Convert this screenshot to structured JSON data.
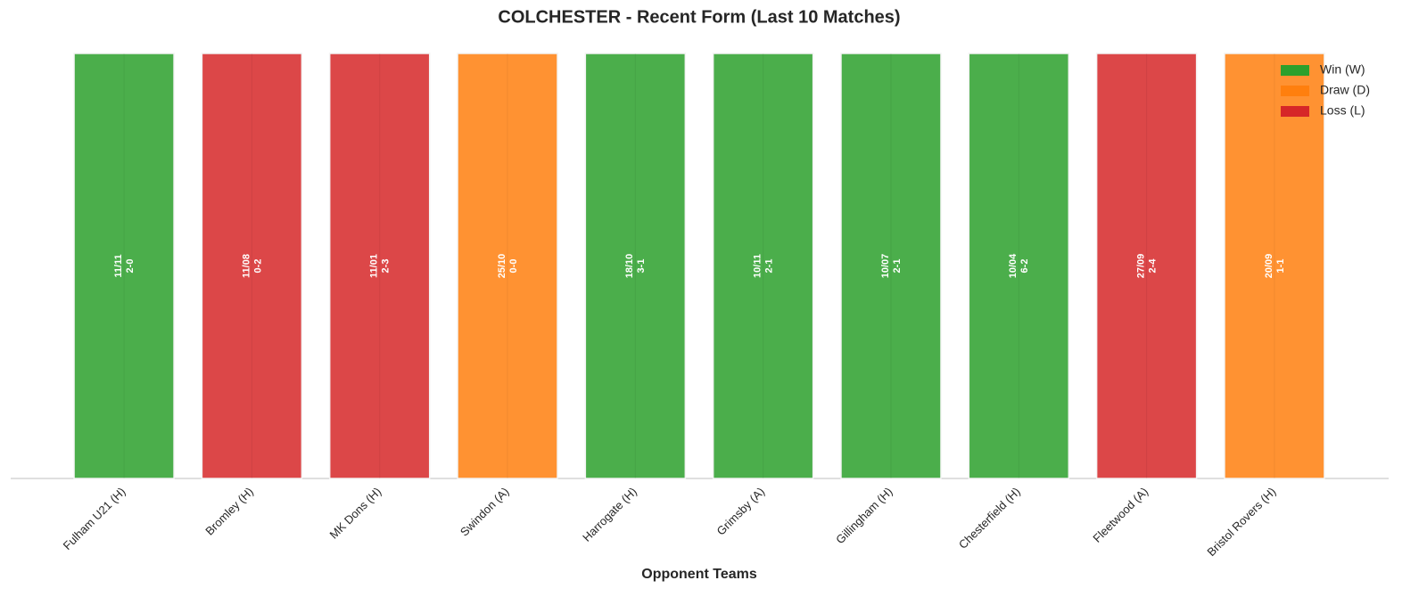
{
  "chart_data": {
    "type": "bar",
    "title": "COLCHESTER - Recent Form (Last 10 Matches)",
    "xlabel": "Opponent Teams",
    "categories": [
      "Fulham U21 (H)",
      "Bromley (H)",
      "MK Dons (H)",
      "Swindon (A)",
      "Harrogate (H)",
      "Grimsby (A)",
      "Gillingham (H)",
      "Chesterfield (H)",
      "Fleetwood (A)",
      "Bristol Rovers (H)"
    ],
    "values": [
      1,
      1,
      1,
      1,
      1,
      1,
      1,
      1,
      1,
      1
    ],
    "dates": [
      "11/11",
      "11/08",
      "11/01",
      "25/10",
      "18/10",
      "10/11",
      "10/07",
      "10/04",
      "27/09",
      "20/09"
    ],
    "scores": [
      "2-0",
      "0-2",
      "2-3",
      "0-0",
      "3-1",
      "2-1",
      "2-1",
      "6-2",
      "2-4",
      "1-1"
    ],
    "colors": [
      "#2ca02c",
      "#d62728",
      "#d62728",
      "#ff7f0e",
      "#2ca02c",
      "#2ca02c",
      "#2ca02c",
      "#2ca02c",
      "#d62728",
      "#ff7f0e"
    ],
    "legend": [
      {
        "name": "Win (W)",
        "color": "#2ca02c"
      },
      {
        "name": "Draw (D)",
        "color": "#ff7f0e"
      },
      {
        "name": "Loss (L)",
        "color": "#d62728"
      }
    ],
    "legend_position": "upper right",
    "ylim": [
      0,
      1
    ]
  }
}
